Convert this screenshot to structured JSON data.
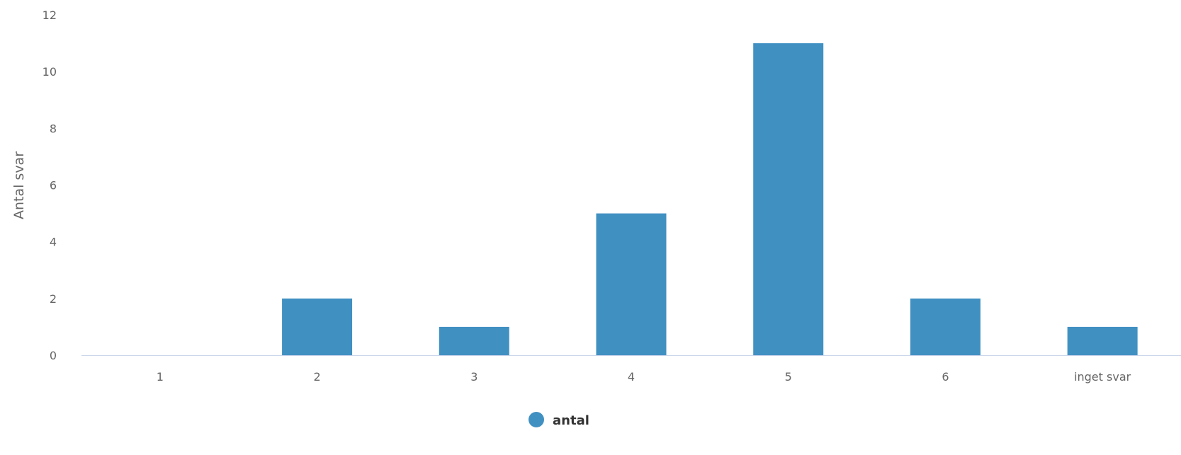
{
  "colors": {
    "bar": "#4190c2",
    "axis_line": "#ccd6eb"
  },
  "chart_data": {
    "type": "bar",
    "title": "",
    "xlabel": "",
    "ylabel": "Antal svar",
    "categories": [
      "1",
      "2",
      "3",
      "4",
      "5",
      "6",
      "inget svar"
    ],
    "series": [
      {
        "name": "antal",
        "values": [
          0,
          2,
          1,
          5,
          11,
          2,
          1
        ]
      }
    ],
    "ylim": [
      0,
      12
    ],
    "yticks": [
      "0",
      "2",
      "4",
      "6",
      "8",
      "10",
      "12"
    ],
    "grid": false,
    "legend": "bottom-center"
  }
}
